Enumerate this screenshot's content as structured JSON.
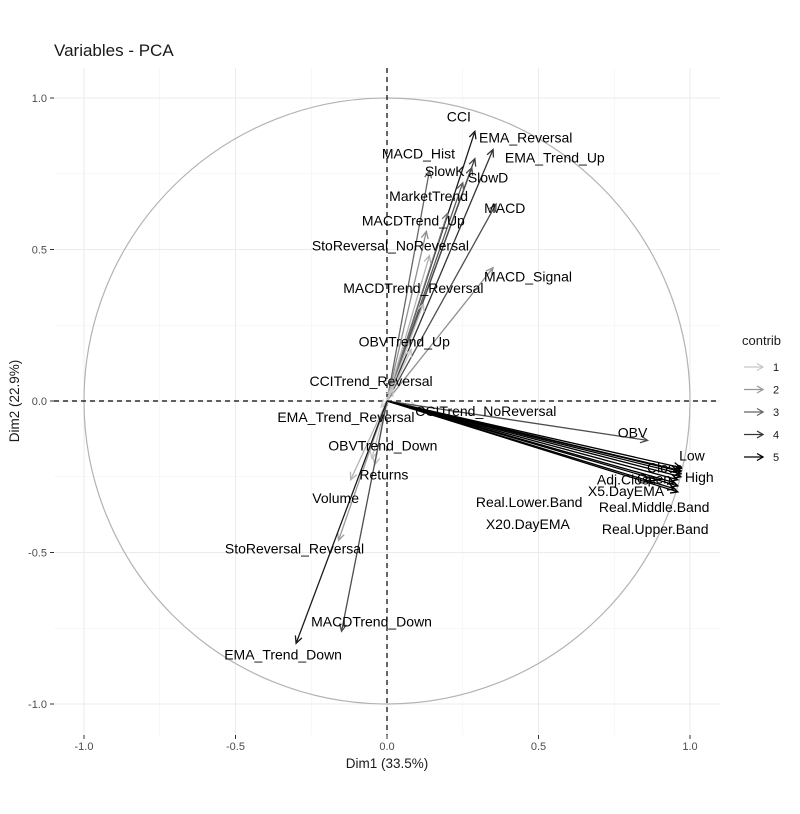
{
  "chart_data": {
    "type": "scatter",
    "subtype": "pca-variable-correlation-circle",
    "title": "Variables - PCA",
    "xlabel": "Dim1 (33.5%)",
    "ylabel": "Dim2 (22.9%)",
    "xlim": [
      -1.0,
      1.0
    ],
    "ylim": [
      -1.0,
      1.0
    ],
    "x_ticks": [
      {
        "value": -1.0,
        "label": "-1.0"
      },
      {
        "value": -0.5,
        "label": "-0.5"
      },
      {
        "value": 0.0,
        "label": "0.0"
      },
      {
        "value": 0.5,
        "label": "0.5"
      },
      {
        "value": 1.0,
        "label": "1.0"
      }
    ],
    "y_ticks": [
      {
        "value": 1.0,
        "label": "1.0"
      },
      {
        "value": 0.5,
        "label": "0.5"
      },
      {
        "value": 0.0,
        "label": "0.0"
      },
      {
        "value": -0.5,
        "label": "-0.5"
      },
      {
        "value": -1.0,
        "label": "-1.0"
      }
    ],
    "grid": true,
    "unit_circle": true,
    "reference_lines": {
      "x": 0,
      "y": 0,
      "style": "dashed"
    },
    "legend": {
      "title": "contrib",
      "placement": "right",
      "items": [
        {
          "label": "1",
          "value": 1,
          "color": "#c8c8c8"
        },
        {
          "label": "2",
          "value": 2,
          "color": "#969696"
        },
        {
          "label": "3",
          "value": 3,
          "color": "#666666"
        },
        {
          "label": "4",
          "value": 4,
          "color": "#363636"
        },
        {
          "label": "5",
          "value": 5,
          "color": "#000000"
        }
      ]
    },
    "variables": [
      {
        "name": "CCI",
        "x": 0.29,
        "y": 0.89,
        "contrib": 4.5
      },
      {
        "name": "EMA_Reversal",
        "x": 0.35,
        "y": 0.83,
        "contrib": 4
      },
      {
        "name": "EMA_Trend_Up",
        "x": 0.29,
        "y": 0.8,
        "contrib": 3.8
      },
      {
        "name": "MACD_Hist",
        "x": 0.14,
        "y": 0.76,
        "contrib": 3
      },
      {
        "name": "SlowD",
        "x": 0.28,
        "y": 0.77,
        "contrib": 3.5
      },
      {
        "name": "SlowK",
        "x": 0.25,
        "y": 0.72,
        "contrib": 3.2
      },
      {
        "name": "MACD",
        "x": 0.36,
        "y": 0.65,
        "contrib": 3.5
      },
      {
        "name": "MarketTrend",
        "x": 0.2,
        "y": 0.62,
        "contrib": 2.8
      },
      {
        "name": "MACDTrend_Up",
        "x": 0.13,
        "y": 0.56,
        "contrib": 2.2
      },
      {
        "name": "StoReversal_NoReversal",
        "x": 0.14,
        "y": 0.48,
        "contrib": 1.5
      },
      {
        "name": "MACD_Signal",
        "x": 0.35,
        "y": 0.44,
        "contrib": 2.2
      },
      {
        "name": "MACDTrend_Reversal",
        "x": 0.12,
        "y": 0.32,
        "contrib": 1.3
      },
      {
        "name": "OBVTrend_Up",
        "x": 0.08,
        "y": 0.17,
        "contrib": 1.2
      },
      {
        "name": "CCITrend_Reversal",
        "x": 0.02,
        "y": 0.04,
        "contrib": 1.1
      },
      {
        "name": "EMA_Trend_Reversal",
        "x": -0.02,
        "y": -0.02,
        "contrib": 1
      },
      {
        "name": "CCITrend_NoReversal",
        "x": 0.1,
        "y": -0.02,
        "contrib": 1.2
      },
      {
        "name": "OBV",
        "x": 0.86,
        "y": -0.13,
        "contrib": 3.5
      },
      {
        "name": "Close",
        "x": 0.97,
        "y": -0.22,
        "contrib": 5
      },
      {
        "name": "Low",
        "x": 0.97,
        "y": -0.23,
        "contrib": 5
      },
      {
        "name": "Adj.Close",
        "x": 0.96,
        "y": -0.23,
        "contrib": 5
      },
      {
        "name": "Open",
        "x": 0.97,
        "y": -0.24,
        "contrib": 5
      },
      {
        "name": "High",
        "x": 0.97,
        "y": -0.25,
        "contrib": 5
      },
      {
        "name": "X5.DayEMA",
        "x": 0.96,
        "y": -0.26,
        "contrib": 5
      },
      {
        "name": "Real.Lower.Band",
        "x": 0.95,
        "y": -0.27,
        "contrib": 5
      },
      {
        "name": "Real.Middle.Band",
        "x": 0.96,
        "y": -0.28,
        "contrib": 5
      },
      {
        "name": "X20.DayEMA",
        "x": 0.95,
        "y": -0.29,
        "contrib": 5
      },
      {
        "name": "Real.Upper.Band",
        "x": 0.96,
        "y": -0.3,
        "contrib": 5
      },
      {
        "name": "OBVTrend_Down",
        "x": -0.05,
        "y": -0.19,
        "contrib": 1.2
      },
      {
        "name": "Returns",
        "x": -0.04,
        "y": -0.21,
        "contrib": 1.3
      },
      {
        "name": "Volume",
        "x": -0.12,
        "y": -0.26,
        "contrib": 1.5
      },
      {
        "name": "StoReversal_Reversal",
        "x": -0.16,
        "y": -0.46,
        "contrib": 2
      },
      {
        "name": "MACDTrend_Down",
        "x": -0.15,
        "y": -0.76,
        "contrib": 3.5
      },
      {
        "name": "EMA_Trend_Down",
        "x": -0.3,
        "y": -0.8,
        "contrib": 4.5
      }
    ]
  }
}
